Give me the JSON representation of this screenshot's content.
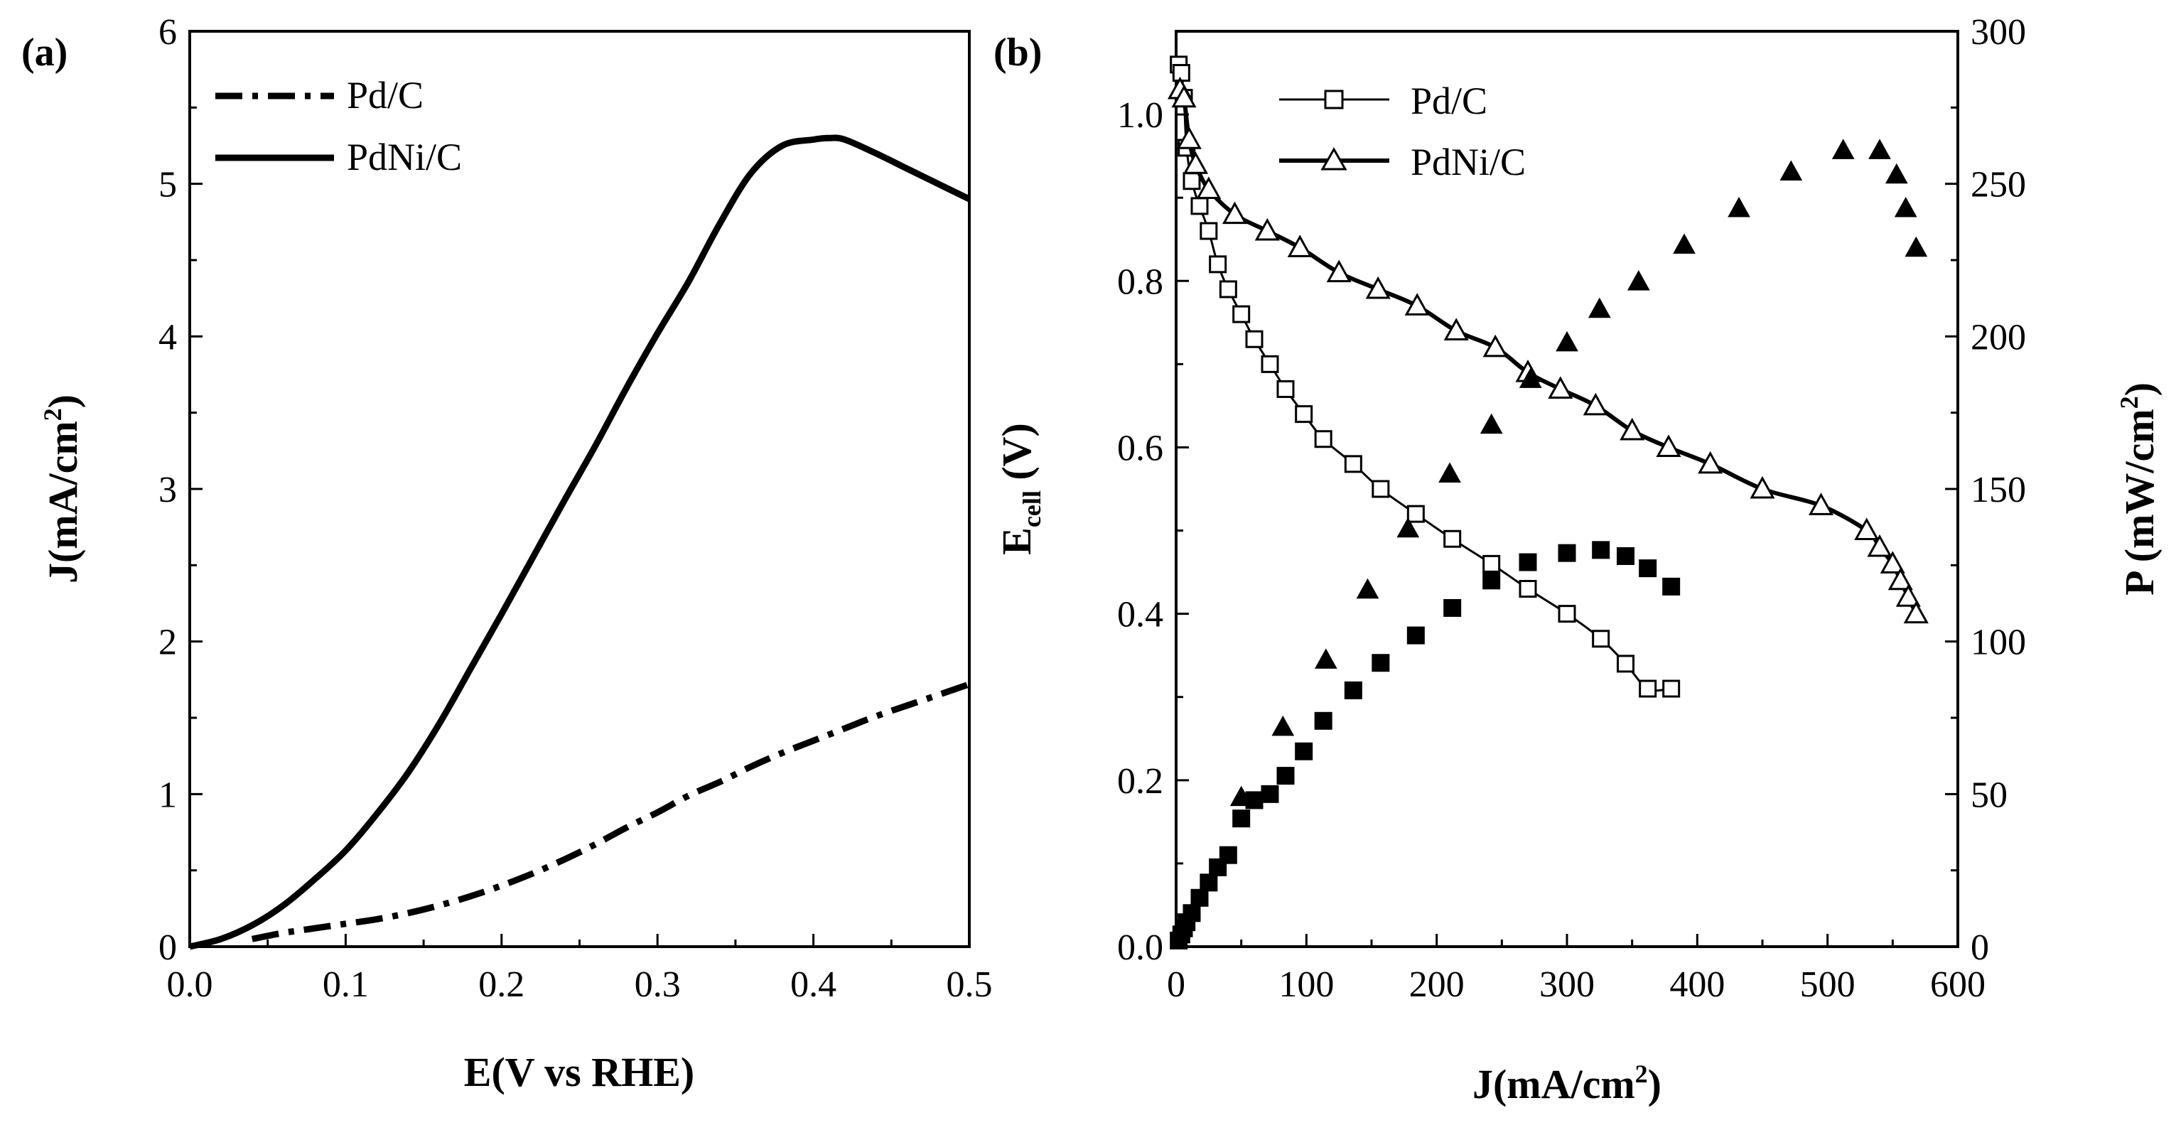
{
  "chart_data": [
    {
      "panel_label": "(a)",
      "type": "line",
      "xlabel": "E(V vs RHE)",
      "ylabel_main": "J(mA/cm",
      "ylabel_sup": "2",
      "ylabel_tail": ")",
      "xlim": [
        0.0,
        0.5
      ],
      "ylim": [
        0,
        6
      ],
      "x_ticks": [
        "0.0",
        "0.1",
        "0.2",
        "0.3",
        "0.4",
        "0.5"
      ],
      "y_ticks": [
        "0",
        "1",
        "2",
        "3",
        "4",
        "5",
        "6"
      ],
      "legend_position": "top-left",
      "series": [
        {
          "name": "Pd/C",
          "style": "dash-dot",
          "x": [
            0.04,
            0.06,
            0.08,
            0.1,
            0.12,
            0.14,
            0.16,
            0.18,
            0.2,
            0.22,
            0.24,
            0.26,
            0.28,
            0.3,
            0.32,
            0.34,
            0.36,
            0.38,
            0.4,
            0.42,
            0.44,
            0.46,
            0.48,
            0.5
          ],
          "y": [
            0.05,
            0.09,
            0.12,
            0.15,
            0.18,
            0.22,
            0.27,
            0.33,
            0.4,
            0.48,
            0.57,
            0.67,
            0.78,
            0.88,
            0.99,
            1.08,
            1.18,
            1.27,
            1.35,
            1.43,
            1.51,
            1.58,
            1.65,
            1.72
          ]
        },
        {
          "name": "PdNi/C",
          "style": "solid",
          "x": [
            0.0,
            0.02,
            0.04,
            0.06,
            0.08,
            0.1,
            0.12,
            0.14,
            0.16,
            0.18,
            0.2,
            0.22,
            0.24,
            0.26,
            0.28,
            0.3,
            0.32,
            0.34,
            0.36,
            0.38,
            0.4,
            0.41,
            0.42,
            0.44,
            0.46,
            0.48,
            0.5
          ],
          "y": [
            0.0,
            0.05,
            0.14,
            0.27,
            0.44,
            0.63,
            0.87,
            1.14,
            1.46,
            1.82,
            2.18,
            2.55,
            2.92,
            3.28,
            3.66,
            4.02,
            4.36,
            4.74,
            5.07,
            5.25,
            5.29,
            5.3,
            5.29,
            5.2,
            5.1,
            5.0,
            4.9
          ]
        }
      ]
    },
    {
      "panel_label": "(b)",
      "type": "scatter",
      "xlabel_main": "J(mA/cm",
      "xlabel_sup": "2",
      "xlabel_tail": ")",
      "ylabel_main": "E",
      "ylabel_sub": "cell",
      "ylabel_tail": " (V)",
      "y2label_main": "P (mW/cm",
      "y2label_sup": "2",
      "y2label_tail": ")",
      "xlim": [
        0,
        600
      ],
      "ylim": [
        0.0,
        1.1
      ],
      "y2lim": [
        0,
        300
      ],
      "x_ticks": [
        "0",
        "100",
        "200",
        "300",
        "400",
        "500",
        "600"
      ],
      "y_ticks": [
        "0.0",
        "0.2",
        "0.4",
        "0.6",
        "0.8",
        "1.0"
      ],
      "y2_ticks": [
        "0",
        "50",
        "100",
        "150",
        "200",
        "250",
        "300"
      ],
      "legend_position": "top-center",
      "legend": [
        "Pd/C",
        "PdNi/C"
      ],
      "series": [
        {
          "name": "Pd/C",
          "kind": "voltage",
          "marker": "open-square",
          "x": [
            2,
            4,
            6,
            8,
            12,
            18,
            25,
            32,
            40,
            50,
            60,
            72,
            84,
            98,
            113,
            136,
            157,
            184,
            212,
            242,
            270,
            300,
            326,
            345,
            362,
            380
          ],
          "y": [
            1.06,
            1.05,
            1.02,
            0.96,
            0.92,
            0.89,
            0.86,
            0.82,
            0.79,
            0.76,
            0.73,
            0.7,
            0.67,
            0.64,
            0.61,
            0.58,
            0.55,
            0.52,
            0.49,
            0.46,
            0.43,
            0.4,
            0.37,
            0.34,
            0.31,
            0.31
          ]
        },
        {
          "name": "PdNi/C",
          "kind": "voltage",
          "marker": "open-triangle",
          "x": [
            3,
            6,
            10,
            15,
            25,
            45,
            70,
            95,
            125,
            155,
            185,
            215,
            245,
            270,
            295,
            322,
            350,
            378,
            410,
            450,
            495,
            530,
            540,
            550,
            556,
            562,
            568
          ],
          "y": [
            1.03,
            1.02,
            0.97,
            0.94,
            0.91,
            0.88,
            0.86,
            0.84,
            0.81,
            0.79,
            0.77,
            0.74,
            0.72,
            0.69,
            0.67,
            0.65,
            0.62,
            0.6,
            0.58,
            0.55,
            0.53,
            0.5,
            0.48,
            0.46,
            0.44,
            0.42,
            0.4
          ]
        },
        {
          "name": "Pd/C",
          "kind": "power",
          "marker": "filled-square",
          "x": [
            2,
            4,
            6,
            8,
            12,
            18,
            25,
            32,
            40,
            50,
            60,
            72,
            84,
            98,
            113,
            136,
            157,
            184,
            212,
            242,
            270,
            300,
            326,
            345,
            362,
            380
          ],
          "y": [
            2,
            4,
            6,
            8,
            11,
            16,
            21,
            26,
            30,
            42,
            48,
            50,
            56,
            64,
            74,
            84,
            93,
            102,
            111,
            120,
            126,
            129,
            130,
            128,
            124,
            118
          ]
        },
        {
          "name": "PdNi/C",
          "kind": "power",
          "marker": "filled-triangle",
          "x": [
            50,
            82,
            115,
            147,
            178,
            210,
            242,
            272,
            300,
            325,
            355,
            390,
            432,
            472,
            512,
            540,
            553,
            560,
            568
          ],
          "y": [
            49,
            72,
            94,
            117,
            137,
            155,
            171,
            186,
            198,
            209,
            218,
            230,
            242,
            254,
            261,
            261,
            253,
            242,
            229
          ]
        }
      ]
    }
  ]
}
